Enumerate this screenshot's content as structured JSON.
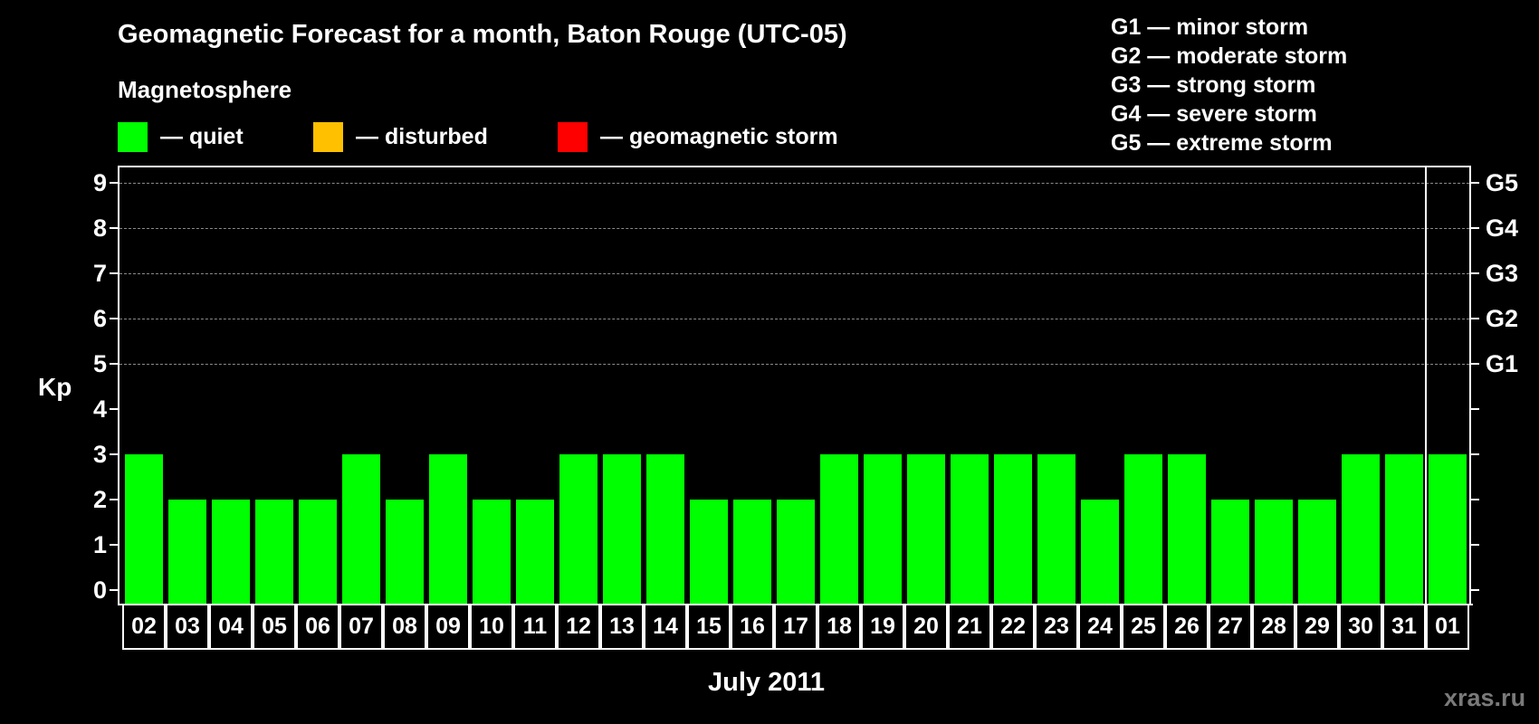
{
  "title": "Geomagnetic Forecast for a month, Baton Rouge (UTC-05)",
  "subtitle": "Magnetosphere",
  "legend": [
    {
      "label": "— quiet",
      "color": "#00ff00"
    },
    {
      "label": "— disturbed",
      "color": "#ffc000"
    },
    {
      "label": "— geomagnetic storm",
      "color": "#ff0000"
    }
  ],
  "storm_scale": [
    "G1 — minor storm",
    "G2 — moderate storm",
    "G3 — strong storm",
    "G4 — severe storm",
    "G5 — extreme storm"
  ],
  "watermark": "xras.ru",
  "chart_data": {
    "type": "bar",
    "title": "Geomagnetic Forecast for a month, Baton Rouge (UTC-05)",
    "subtitle": "Magnetosphere",
    "xlabel": "July 2011",
    "ylabel": "Kp",
    "ylim": [
      0,
      9
    ],
    "yticks": [
      0,
      1,
      2,
      3,
      4,
      5,
      6,
      7,
      8,
      9
    ],
    "right_axis_labels": {
      "5": "G1",
      "6": "G2",
      "7": "G3",
      "8": "G4",
      "9": "G5"
    },
    "grid": "dashed horizontal lines at Kp 5-9",
    "legend_position": "top",
    "categories": [
      "02",
      "03",
      "04",
      "05",
      "06",
      "07",
      "08",
      "09",
      "10",
      "11",
      "12",
      "13",
      "14",
      "15",
      "16",
      "17",
      "18",
      "19",
      "20",
      "21",
      "22",
      "23",
      "24",
      "25",
      "26",
      "27",
      "28",
      "29",
      "30",
      "31",
      "01"
    ],
    "values": [
      3,
      2,
      2,
      2,
      2,
      3,
      2,
      3,
      2,
      2,
      3,
      3,
      3,
      2,
      2,
      2,
      3,
      3,
      3,
      3,
      3,
      3,
      2,
      3,
      3,
      2,
      2,
      2,
      3,
      3,
      3
    ],
    "bar_color": "#00ff00",
    "month_divider_before": "01"
  }
}
